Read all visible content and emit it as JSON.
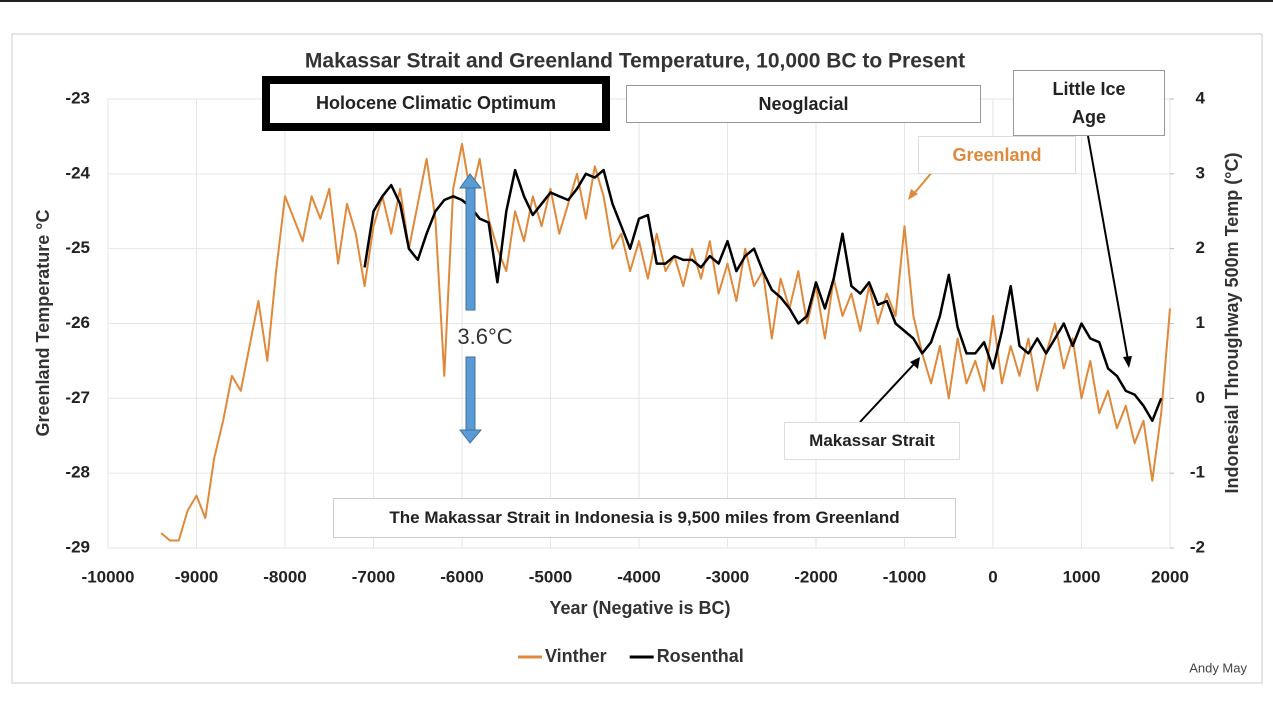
{
  "chart_data": {
    "type": "line",
    "title": "Makassar Strait and Greenland Temperature, 10,000 BC to Present",
    "x_label": "Year (Negative is BC)",
    "y_label": "Greenland Temperature °C",
    "y2_label": "Indonesial Throughway 500m Temp (°C)",
    "credit": "Andy May",
    "annotations": [
      "Holocene Climatic Optimum",
      "Neoglacial",
      "Little Ice Age",
      "Greenland",
      "3.6°C",
      "Makassar Strait",
      "The Makassar Strait in Indonesia is 9,500 miles from Greenland"
    ],
    "xlim": [
      -10000,
      2000
    ],
    "xticks": [
      -10000,
      -9000,
      -8000,
      -7000,
      -6000,
      -5000,
      -4000,
      -3000,
      -2000,
      -1000,
      0,
      1000,
      2000
    ],
    "ylim": [
      -29,
      -23
    ],
    "yticks": [
      -29,
      -28,
      -27,
      -26,
      -25,
      -24,
      -23
    ],
    "y2lim": [
      -2,
      4
    ],
    "y2ticks": [
      -2,
      -1,
      0,
      1,
      2,
      3,
      4
    ],
    "grid": true,
    "legend": "bottom",
    "x": [
      -9400,
      -9300,
      -9200,
      -9100,
      -9000,
      -8900,
      -8800,
      -8700,
      -8600,
      -8500,
      -8400,
      -8300,
      -8200,
      -8100,
      -8000,
      -7900,
      -7800,
      -7700,
      -7600,
      -7500,
      -7400,
      -7300,
      -7200,
      -7100,
      -7000,
      -6900,
      -6800,
      -6700,
      -6600,
      -6500,
      -6400,
      -6300,
      -6200,
      -6100,
      -6000,
      -5900,
      -5800,
      -5700,
      -5600,
      -5500,
      -5400,
      -5300,
      -5200,
      -5100,
      -5000,
      -4900,
      -4800,
      -4700,
      -4600,
      -4500,
      -4400,
      -4300,
      -4200,
      -4100,
      -4000,
      -3900,
      -3800,
      -3700,
      -3600,
      -3500,
      -3400,
      -3300,
      -3200,
      -3100,
      -3000,
      -2900,
      -2800,
      -2700,
      -2600,
      -2500,
      -2400,
      -2300,
      -2200,
      -2100,
      -2000,
      -1900,
      -1800,
      -1700,
      -1600,
      -1500,
      -1400,
      -1300,
      -1200,
      -1100,
      -1000,
      -900,
      -800,
      -700,
      -600,
      -500,
      -400,
      -300,
      -200,
      -100,
      0,
      100,
      200,
      300,
      400,
      500,
      600,
      700,
      800,
      900,
      1000,
      1100,
      1200,
      1300,
      1400,
      1500,
      1600,
      1700,
      1800,
      1900,
      2000
    ],
    "series": [
      {
        "name": "Vinther",
        "color": "#e0893a",
        "axis": "y",
        "values": [
          -28.8,
          -28.9,
          -28.9,
          -28.5,
          -28.3,
          -28.6,
          -27.8,
          -27.3,
          -26.7,
          -26.9,
          -26.3,
          -25.7,
          -26.5,
          -25.3,
          -24.3,
          -24.6,
          -24.9,
          -24.3,
          -24.6,
          -24.2,
          -25.2,
          -24.4,
          -24.8,
          -25.5,
          -24.7,
          -24.3,
          -24.8,
          -24.2,
          -25.0,
          -24.4,
          -23.8,
          -24.6,
          -26.7,
          -24.2,
          -23.6,
          -24.3,
          -23.8,
          -24.6,
          -25.0,
          -25.3,
          -24.5,
          -24.9,
          -24.3,
          -24.7,
          -24.2,
          -24.8,
          -24.4,
          -24.0,
          -24.6,
          -23.9,
          -24.3,
          -25.0,
          -24.8,
          -25.3,
          -24.9,
          -25.4,
          -24.8,
          -25.3,
          -25.1,
          -25.5,
          -25.0,
          -25.4,
          -24.9,
          -25.6,
          -25.2,
          -25.7,
          -25.0,
          -25.5,
          -25.3,
          -26.2,
          -25.4,
          -25.8,
          -25.3,
          -26.0,
          -25.5,
          -26.2,
          -25.4,
          -25.9,
          -25.6,
          -26.1,
          -25.5,
          -26.0,
          -25.6,
          -25.9,
          -24.7,
          -25.9,
          -26.4,
          -26.8,
          -26.3,
          -27.0,
          -26.2,
          -26.8,
          -26.5,
          -26.9,
          -25.9,
          -26.8,
          -26.3,
          -26.7,
          -26.2,
          -26.9,
          -26.4,
          -26.0,
          -26.6,
          -26.2,
          -27.0,
          -26.5,
          -27.2,
          -26.9,
          -27.4,
          -27.1,
          -27.6,
          -27.3,
          -28.1,
          -27.2,
          -25.8
        ]
      },
      {
        "name": "Rosenthal",
        "color": "#000000",
        "axis": "y2",
        "values": [
          null,
          null,
          null,
          null,
          null,
          null,
          null,
          null,
          null,
          null,
          null,
          null,
          null,
          null,
          null,
          null,
          null,
          null,
          null,
          null,
          null,
          null,
          null,
          1.75,
          2.5,
          2.7,
          2.85,
          2.6,
          2.0,
          1.85,
          2.2,
          2.5,
          2.65,
          2.7,
          2.65,
          2.55,
          2.4,
          2.35,
          1.55,
          2.5,
          3.05,
          2.7,
          2.45,
          2.6,
          2.75,
          2.7,
          2.65,
          2.8,
          3.0,
          2.95,
          3.05,
          2.6,
          2.3,
          2.0,
          2.4,
          2.45,
          1.8,
          1.8,
          1.9,
          1.85,
          1.85,
          1.75,
          1.9,
          1.8,
          2.1,
          1.7,
          1.9,
          2.0,
          1.7,
          1.45,
          1.35,
          1.2,
          1.0,
          1.1,
          1.55,
          1.2,
          1.6,
          2.2,
          1.5,
          1.4,
          1.55,
          1.25,
          1.3,
          1.0,
          0.9,
          0.8,
          0.6,
          0.75,
          1.1,
          1.65,
          0.95,
          0.6,
          0.6,
          0.75,
          0.4,
          0.9,
          1.5,
          0.7,
          0.6,
          0.8,
          0.6,
          0.8,
          1.0,
          0.7,
          1.0,
          0.8,
          0.75,
          0.4,
          0.3,
          0.1,
          0.05,
          -0.1,
          -0.3,
          0.0,
          null
        ]
      }
    ]
  }
}
